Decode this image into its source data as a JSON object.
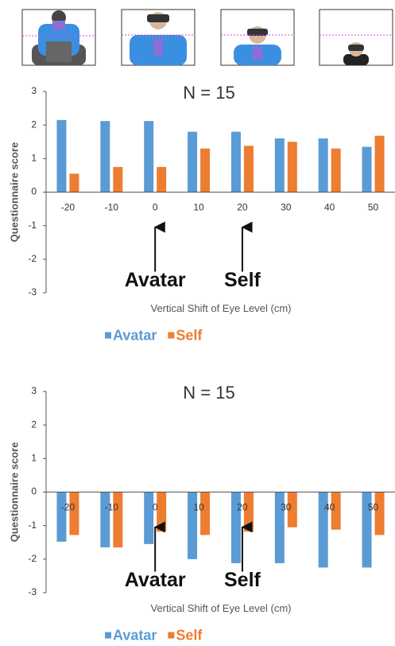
{
  "chart_data": [
    {
      "type": "bar",
      "title": "N = 15",
      "x_label": "Vertical Shift of Eye Level (cm)",
      "y_label": "Questionnaire score",
      "categories": [
        -20,
        -10,
        0,
        10,
        20,
        30,
        40,
        50
      ],
      "series": [
        {
          "name": "Avatar",
          "color": "#5b9bd5",
          "values": [
            2.15,
            2.12,
            2.12,
            1.8,
            1.8,
            1.6,
            1.6,
            1.35
          ]
        },
        {
          "name": "Self",
          "color": "#ed7d31",
          "values": [
            0.55,
            0.75,
            0.75,
            1.3,
            1.38,
            1.5,
            1.3,
            1.68
          ]
        }
      ],
      "ylim": [
        -3,
        3
      ],
      "yticks": [
        -3,
        -2,
        -1,
        0,
        1,
        2,
        3
      ],
      "annotations": [
        {
          "text": "Avatar",
          "x": 0
        },
        {
          "text": "Self",
          "x": 20
        }
      ]
    },
    {
      "type": "bar",
      "title": "N = 15",
      "x_label": "Vertical Shift of Eye Level (cm)",
      "y_label": "Questionnaire score",
      "categories": [
        -20,
        -10,
        0,
        10,
        20,
        30,
        40,
        50
      ],
      "series": [
        {
          "name": "Avatar",
          "color": "#5b9bd5",
          "values": [
            -1.48,
            -1.65,
            -1.55,
            -2.0,
            -2.12,
            -2.12,
            -2.25,
            -2.25
          ]
        },
        {
          "name": "Self",
          "color": "#ed7d31",
          "values": [
            -1.28,
            -1.65,
            -1.18,
            -1.28,
            -1.18,
            -1.05,
            -1.12,
            -1.28
          ]
        }
      ],
      "ylim": [
        -3,
        3
      ],
      "yticks": [
        -3,
        -2,
        -1,
        0,
        1,
        2,
        3
      ],
      "annotations": [
        {
          "text": "Avatar",
          "x": 0
        },
        {
          "text": "Self",
          "x": 20
        }
      ]
    }
  ]
}
